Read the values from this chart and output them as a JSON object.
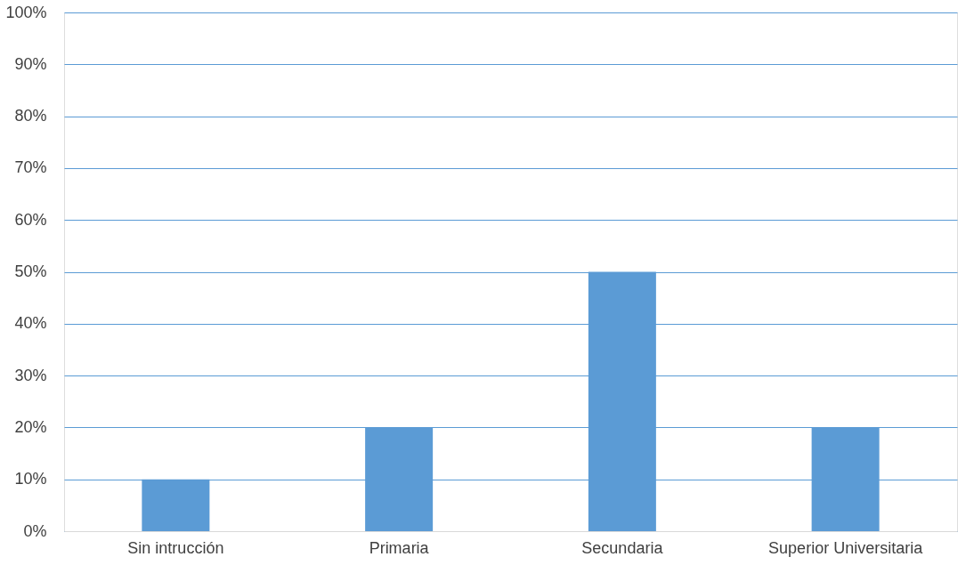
{
  "chart_data": {
    "type": "bar",
    "categories": [
      "Sin intrucción",
      "Primaria",
      "Secundaria",
      "Superior Universitaria"
    ],
    "values": [
      10,
      20,
      50,
      20
    ],
    "color": "#5b9bd5",
    "ylim": [
      0,
      100
    ],
    "yticks": [
      {
        "value": 0,
        "label": "0%"
      },
      {
        "value": 10,
        "label": "10%"
      },
      {
        "value": 20,
        "label": "20%"
      },
      {
        "value": 30,
        "label": "30%"
      },
      {
        "value": 40,
        "label": "40%"
      },
      {
        "value": 50,
        "label": "50%"
      },
      {
        "value": 60,
        "label": "60%"
      },
      {
        "value": 70,
        "label": "70%"
      },
      {
        "value": 80,
        "label": "80%"
      },
      {
        "value": 90,
        "label": "90%"
      },
      {
        "value": 100,
        "label": "100%"
      }
    ],
    "grid": "y"
  }
}
